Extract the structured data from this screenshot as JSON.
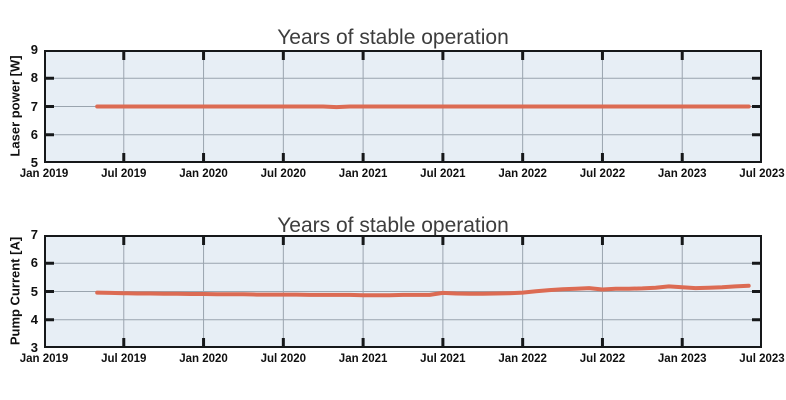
{
  "figure": {
    "background": "#ffffff",
    "title_color": "#3d3d3d",
    "label_color": "#101010"
  },
  "chart_data": [
    {
      "id": "laser-power",
      "type": "line",
      "title": "Years of stable operation",
      "xlabel": "",
      "ylabel": "Laser power [W]",
      "ylim": [
        5,
        9
      ],
      "y_ticks": [
        5,
        6,
        7,
        8,
        9
      ],
      "x_tick_labels": [
        "Jan 2019",
        "Jul 2019",
        "Jan 2020",
        "Jul 2020",
        "Jan 2021",
        "Jul 2021",
        "Jan 2022",
        "Jul 2022",
        "Jan 2023",
        "Jul 2023"
      ],
      "x_start": "2019-01",
      "x_end": "2023-07",
      "grid": true,
      "legend": "none",
      "line_color": "#dc6b53",
      "plot_background": "#e7eef5",
      "grid_color": "#9aa4ae",
      "axis_color": "#16181a",
      "points": [
        [
          "2019-05",
          7.0
        ],
        [
          "2019-06",
          7.0
        ],
        [
          "2019-07",
          7.0
        ],
        [
          "2019-08",
          7.0
        ],
        [
          "2019-09",
          7.0
        ],
        [
          "2019-10",
          7.0
        ],
        [
          "2019-11",
          7.0
        ],
        [
          "2019-12",
          7.0
        ],
        [
          "2020-01",
          7.0
        ],
        [
          "2020-02",
          7.0
        ],
        [
          "2020-03",
          7.0
        ],
        [
          "2020-04",
          7.0
        ],
        [
          "2020-05",
          7.0
        ],
        [
          "2020-06",
          7.0
        ],
        [
          "2020-07",
          7.0
        ],
        [
          "2020-08",
          7.0
        ],
        [
          "2020-09",
          7.0
        ],
        [
          "2020-10",
          7.0
        ],
        [
          "2020-11",
          6.98
        ],
        [
          "2020-12",
          7.0
        ],
        [
          "2021-01",
          7.0
        ],
        [
          "2021-02",
          7.0
        ],
        [
          "2021-03",
          7.0
        ],
        [
          "2021-04",
          7.0
        ],
        [
          "2021-05",
          7.0
        ],
        [
          "2021-06",
          7.0
        ],
        [
          "2021-07",
          7.0
        ],
        [
          "2021-08",
          7.0
        ],
        [
          "2021-09",
          7.0
        ],
        [
          "2021-10",
          7.0
        ],
        [
          "2021-11",
          7.0
        ],
        [
          "2021-12",
          7.0
        ],
        [
          "2022-01",
          7.0
        ],
        [
          "2022-02",
          7.0
        ],
        [
          "2022-03",
          7.0
        ],
        [
          "2022-04",
          7.0
        ],
        [
          "2022-05",
          7.0
        ],
        [
          "2022-06",
          7.0
        ],
        [
          "2022-07",
          7.0
        ],
        [
          "2022-08",
          7.0
        ],
        [
          "2022-09",
          7.0
        ],
        [
          "2022-10",
          7.0
        ],
        [
          "2022-11",
          7.0
        ],
        [
          "2022-12",
          7.0
        ],
        [
          "2023-01",
          7.0
        ],
        [
          "2023-02",
          7.0
        ],
        [
          "2023-03",
          7.0
        ],
        [
          "2023-04",
          7.0
        ],
        [
          "2023-05",
          7.0
        ],
        [
          "2023-06",
          7.0
        ]
      ]
    },
    {
      "id": "pump-current",
      "type": "line",
      "title": "Years of stable operation",
      "xlabel": "",
      "ylabel": "Pump Current [A]",
      "ylim": [
        3,
        7
      ],
      "y_ticks": [
        3,
        4,
        5,
        6,
        7
      ],
      "x_tick_labels": [
        "Jan 2019",
        "Jul 2019",
        "Jan 2020",
        "Jul 2020",
        "Jan 2021",
        "Jul 2021",
        "Jan 2022",
        "Jul 2022",
        "Jan 2023",
        "Jul 2023"
      ],
      "x_start": "2019-01",
      "x_end": "2023-07",
      "grid": true,
      "legend": "none",
      "line_color": "#dc6b53",
      "plot_background": "#e7eef5",
      "grid_color": "#9aa4ae",
      "axis_color": "#16181a",
      "points": [
        [
          "2019-05",
          4.96
        ],
        [
          "2019-06",
          4.95
        ],
        [
          "2019-07",
          4.94
        ],
        [
          "2019-08",
          4.93
        ],
        [
          "2019-09",
          4.93
        ],
        [
          "2019-10",
          4.92
        ],
        [
          "2019-11",
          4.92
        ],
        [
          "2019-12",
          4.91
        ],
        [
          "2020-01",
          4.91
        ],
        [
          "2020-02",
          4.9
        ],
        [
          "2020-03",
          4.9
        ],
        [
          "2020-04",
          4.9
        ],
        [
          "2020-05",
          4.89
        ],
        [
          "2020-06",
          4.89
        ],
        [
          "2020-07",
          4.89
        ],
        [
          "2020-08",
          4.89
        ],
        [
          "2020-09",
          4.88
        ],
        [
          "2020-10",
          4.88
        ],
        [
          "2020-11",
          4.88
        ],
        [
          "2020-12",
          4.88
        ],
        [
          "2021-01",
          4.87
        ],
        [
          "2021-02",
          4.87
        ],
        [
          "2021-03",
          4.87
        ],
        [
          "2021-04",
          4.88
        ],
        [
          "2021-05",
          4.88
        ],
        [
          "2021-06",
          4.88
        ],
        [
          "2021-07",
          4.95
        ],
        [
          "2021-08",
          4.93
        ],
        [
          "2021-09",
          4.92
        ],
        [
          "2021-10",
          4.92
        ],
        [
          "2021-11",
          4.93
        ],
        [
          "2021-12",
          4.94
        ],
        [
          "2022-01",
          4.96
        ],
        [
          "2022-02",
          5.01
        ],
        [
          "2022-03",
          5.05
        ],
        [
          "2022-04",
          5.08
        ],
        [
          "2022-05",
          5.1
        ],
        [
          "2022-06",
          5.12
        ],
        [
          "2022-07",
          5.07
        ],
        [
          "2022-08",
          5.1
        ],
        [
          "2022-09",
          5.1
        ],
        [
          "2022-10",
          5.11
        ],
        [
          "2022-11",
          5.13
        ],
        [
          "2022-12",
          5.18
        ],
        [
          "2023-01",
          5.15
        ],
        [
          "2023-02",
          5.12
        ],
        [
          "2023-03",
          5.13
        ],
        [
          "2023-04",
          5.15
        ],
        [
          "2023-05",
          5.18
        ],
        [
          "2023-06",
          5.2
        ]
      ]
    }
  ]
}
